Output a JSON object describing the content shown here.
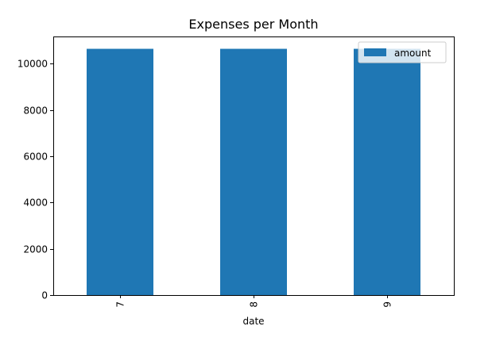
{
  "chart_data": {
    "type": "bar",
    "title": "Expenses per Month",
    "xlabel": "date",
    "ylabel": "",
    "categories": [
      "7",
      "8",
      "9"
    ],
    "series": [
      {
        "name": "amount",
        "values": [
          10650,
          10650,
          10650
        ],
        "color": "#1f77b4"
      }
    ],
    "ylim": [
      0,
      11183
    ],
    "yticks": [
      0,
      2000,
      4000,
      6000,
      8000,
      10000
    ],
    "xtick_rotation": 90,
    "legend_position": "top-right",
    "grid": false
  }
}
